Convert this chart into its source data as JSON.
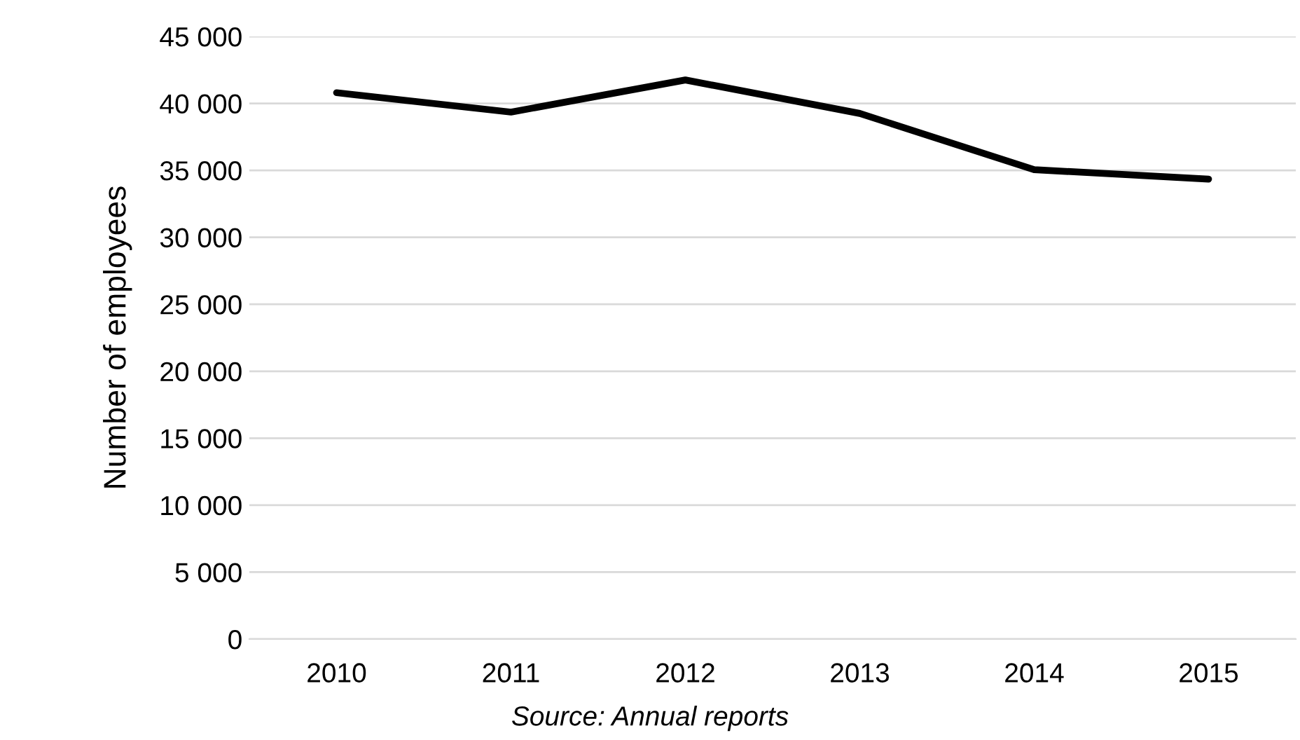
{
  "chart_data": {
    "type": "line",
    "ylabel": "Number of employees",
    "categories": [
      "2010",
      "2011",
      "2012",
      "2013",
      "2014",
      "2015"
    ],
    "series": [
      {
        "color": "#000000",
        "values": [
          40800,
          39350,
          41750,
          39250,
          35050,
          34350
        ]
      }
    ],
    "ylim": [
      0,
      45000
    ],
    "yticks": [
      {
        "value": 0,
        "label": "0"
      },
      {
        "value": 5000,
        "label": "5 000"
      },
      {
        "value": 10000,
        "label": "10 000"
      },
      {
        "value": 15000,
        "label": "15 000"
      },
      {
        "value": 20000,
        "label": "20 000"
      },
      {
        "value": 25000,
        "label": "25 000"
      },
      {
        "value": 30000,
        "label": "30 000"
      },
      {
        "value": 35000,
        "label": "35 000"
      },
      {
        "value": 40000,
        "label": "40 000"
      },
      {
        "value": 45000,
        "label": "45 000"
      }
    ],
    "grid": "y",
    "legend": false,
    "annotations": [
      "Source: Annual reports"
    ]
  }
}
